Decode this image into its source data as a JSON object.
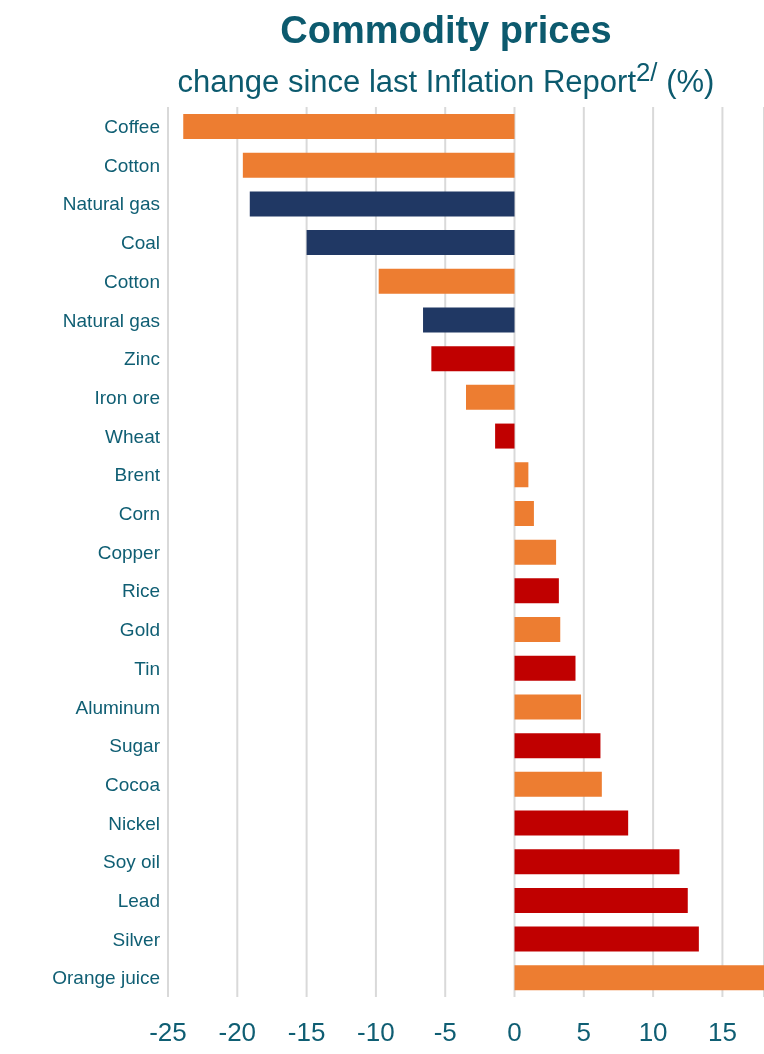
{
  "chart_data": {
    "type": "bar",
    "orientation": "horizontal",
    "title": "Commodity prices",
    "subtitle": "change since last Inflation Report$^{2/}$ (%)",
    "categories": [
      "Coffee",
      "Cotton",
      "Natural gas",
      "Coal",
      "Cotton",
      "Natural gas",
      "Zinc",
      "Iron ore",
      "Wheat",
      "Brent",
      "Corn",
      "Copper",
      "Rice",
      "Gold",
      "Tin",
      "Aluminum",
      "Sugar",
      "Cocoa",
      "Nickel",
      "Soy oil",
      "Lead",
      "Silver",
      "Orange juice"
    ],
    "values": [
      -23.9,
      -19.6,
      -19.1,
      -15.0,
      -9.8,
      -6.6,
      -6.0,
      -3.5,
      -1.4,
      1.0,
      1.4,
      3.0,
      3.2,
      3.3,
      4.4,
      4.8,
      6.2,
      6.3,
      8.2,
      11.9,
      12.5,
      13.3,
      18
    ],
    "colors": [
      "#ed7d31",
      "#ed7d31",
      "#203864",
      "#203864",
      "#ed7d31",
      "#203864",
      "#c00000",
      "#ed7d31",
      "#c00000",
      "#ed7d31",
      "#ed7d31",
      "#ed7d31",
      "#c00000",
      "#ed7d31",
      "#c00000",
      "#ed7d31",
      "#c00000",
      "#ed7d31",
      "#c00000",
      "#c00000",
      "#c00000",
      "#c00000",
      "#ed7d31"
    ],
    "xlim": [
      -25,
      18
    ],
    "xticks": [
      -25,
      -20,
      -15,
      -10,
      -5,
      0,
      5,
      10,
      15
    ],
    "grid": "x"
  }
}
